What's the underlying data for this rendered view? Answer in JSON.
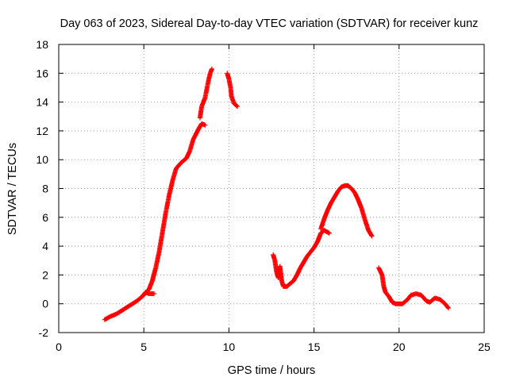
{
  "chart_data": {
    "type": "scatter",
    "title": "Day 063 of 2023, Sidereal Day-to-day VTEC variation (SDTVAR) for receiver kunz",
    "xlabel": "GPS time / hours",
    "ylabel": "SDTVAR / TECUs",
    "xlim": [
      0,
      25
    ],
    "ylim": [
      -2,
      18
    ],
    "xticks": [
      0,
      5,
      10,
      15,
      20,
      25
    ],
    "yticks": [
      -2,
      0,
      2,
      4,
      6,
      8,
      10,
      12,
      14,
      16,
      18
    ],
    "grid": true,
    "marker": "+",
    "color": "#ff0000",
    "series": [
      {
        "name": "kunz",
        "segments": [
          [
            [
              2.7,
              -1.1
            ],
            [
              3.0,
              -0.9
            ],
            [
              3.4,
              -0.7
            ],
            [
              3.8,
              -0.4
            ],
            [
              4.2,
              -0.1
            ],
            [
              4.6,
              0.2
            ],
            [
              4.9,
              0.5
            ],
            [
              5.1,
              0.8
            ],
            [
              5.3,
              0.7
            ],
            [
              5.6,
              0.7
            ]
          ],
          [
            [
              5.0,
              0.6
            ],
            [
              5.3,
              1.0
            ],
            [
              5.5,
              1.6
            ],
            [
              5.7,
              2.5
            ],
            [
              5.9,
              3.6
            ],
            [
              6.1,
              5.0
            ],
            [
              6.3,
              6.4
            ],
            [
              6.5,
              7.6
            ],
            [
              6.7,
              8.6
            ],
            [
              6.9,
              9.4
            ],
            [
              7.2,
              9.8
            ],
            [
              7.5,
              10.1
            ],
            [
              7.7,
              10.6
            ],
            [
              7.9,
              11.4
            ],
            [
              8.2,
              12.1
            ],
            [
              8.4,
              12.5
            ],
            [
              8.6,
              12.4
            ]
          ],
          [
            [
              8.3,
              12.9
            ],
            [
              8.4,
              13.7
            ],
            [
              8.6,
              14.3
            ],
            [
              8.7,
              14.9
            ],
            [
              8.8,
              15.5
            ],
            [
              8.9,
              16.0
            ],
            [
              9.0,
              16.3
            ]
          ],
          [
            [
              9.9,
              16.0
            ],
            [
              10.0,
              15.6
            ],
            [
              10.1,
              15.0
            ],
            [
              10.15,
              14.4
            ],
            [
              10.3,
              13.9
            ],
            [
              10.5,
              13.7
            ]
          ],
          [
            [
              12.6,
              3.4
            ],
            [
              12.7,
              3.0
            ],
            [
              12.8,
              2.2
            ],
            [
              12.9,
              1.8
            ],
            [
              13.0,
              2.6
            ],
            [
              13.1,
              1.6
            ],
            [
              13.2,
              1.2
            ],
            [
              13.4,
              1.2
            ],
            [
              13.6,
              1.4
            ],
            [
              13.8,
              1.6
            ],
            [
              14.0,
              2.0
            ],
            [
              14.2,
              2.5
            ],
            [
              14.4,
              2.9
            ],
            [
              14.6,
              3.3
            ],
            [
              14.8,
              3.6
            ],
            [
              15.0,
              3.9
            ],
            [
              15.2,
              4.3
            ],
            [
              15.4,
              4.9
            ],
            [
              15.6,
              5.1
            ],
            [
              15.9,
              4.9
            ]
          ],
          [
            [
              15.4,
              5.2
            ],
            [
              15.6,
              5.9
            ],
            [
              15.8,
              6.5
            ],
            [
              16.0,
              7.0
            ],
            [
              16.2,
              7.4
            ],
            [
              16.4,
              7.8
            ],
            [
              16.6,
              8.1
            ],
            [
              16.8,
              8.2
            ],
            [
              17.0,
              8.2
            ],
            [
              17.2,
              8.0
            ],
            [
              17.4,
              7.7
            ],
            [
              17.6,
              7.2
            ],
            [
              17.8,
              6.6
            ],
            [
              18.0,
              5.8
            ],
            [
              18.2,
              5.1
            ],
            [
              18.4,
              4.7
            ]
          ],
          [
            [
              18.8,
              2.5
            ],
            [
              19.0,
              2.0
            ],
            [
              19.1,
              1.2
            ],
            [
              19.2,
              0.8
            ],
            [
              19.4,
              0.5
            ],
            [
              19.6,
              0.1
            ],
            [
              19.8,
              0.0
            ],
            [
              20.2,
              0.0
            ],
            [
              20.5,
              0.3
            ],
            [
              20.7,
              0.6
            ],
            [
              21.0,
              0.7
            ],
            [
              21.3,
              0.6
            ],
            [
              21.6,
              0.2
            ],
            [
              21.8,
              0.1
            ],
            [
              22.1,
              0.4
            ],
            [
              22.4,
              0.3
            ],
            [
              22.7,
              0.0
            ],
            [
              22.9,
              -0.3
            ]
          ]
        ]
      }
    ]
  }
}
